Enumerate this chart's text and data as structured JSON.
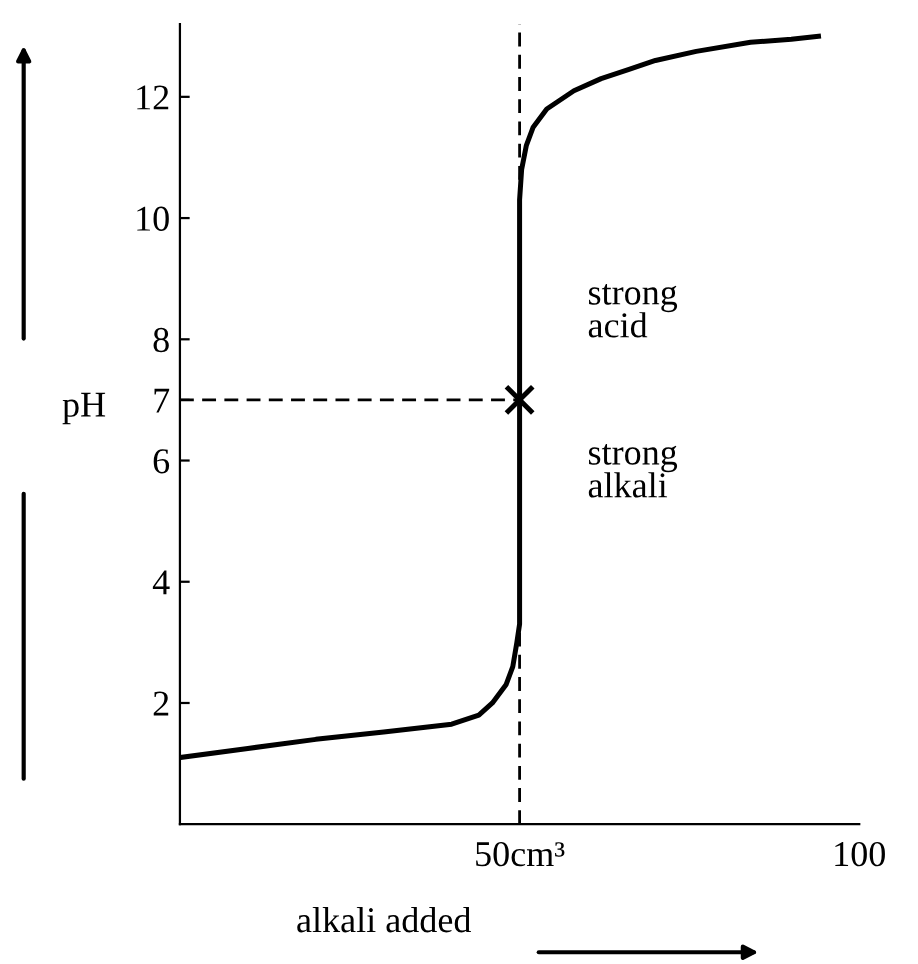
{
  "chart_data": {
    "type": "line",
    "xlabel": "alkali added",
    "ylabel": "pH",
    "xlim": [
      0,
      100
    ],
    "ylim": [
      0,
      13.2
    ],
    "xticks": [
      {
        "value": 50,
        "label": "50cm³"
      },
      100
    ],
    "yticks": [
      2,
      4,
      6,
      7,
      8,
      10,
      12
    ],
    "grid": false,
    "series": [
      {
        "color": "#000000",
        "line_style": "solid",
        "marker": "none",
        "x": [
          0,
          10,
          20,
          30,
          40,
          44,
          46,
          48,
          49,
          49.6,
          50,
          50,
          50.3,
          51,
          52,
          54,
          58,
          62,
          66,
          70,
          76,
          84,
          90,
          94
        ],
        "values": [
          1.1,
          1.25,
          1.4,
          1.52,
          1.65,
          1.8,
          2.0,
          2.3,
          2.6,
          3.0,
          3.3,
          10.3,
          10.8,
          11.2,
          11.5,
          11.8,
          12.1,
          12.3,
          12.45,
          12.6,
          12.75,
          12.9,
          12.95,
          13.0
        ]
      },
      {
        "type": "line",
        "color": "#000000",
        "line_style": "dashed",
        "marker": "none",
        "x": [
          0,
          50
        ],
        "values": [
          7,
          7
        ]
      },
      {
        "type": "scatter",
        "color": "#000000",
        "marker": "cross",
        "x": [
          50
        ],
        "values": [
          7
        ]
      }
    ],
    "ref_lines": [
      {
        "axis": "x",
        "value": 50,
        "color": "#000000",
        "line_style": "dashed"
      }
    ],
    "annotations": [
      "strong\nacid",
      "strong\nalkali"
    ]
  }
}
